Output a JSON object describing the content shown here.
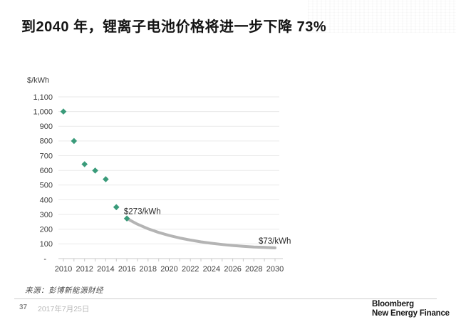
{
  "page": {
    "title": "到2040 年，锂离子电池价格将进一步下降 73%",
    "source": "来源：彭博新能源财经",
    "page_number": "37",
    "date": "2017年7月25日",
    "logo_line1": "Bloomberg",
    "logo_line2": "New Energy Finance"
  },
  "colors": {
    "observed_point": "#3a9b7a",
    "forecast_curve": "#b4b4b4",
    "gridline": "#eaeaea",
    "axis": "#c8c8c8",
    "tick_text": "#3d3d3d",
    "annotation_text": "#2a2a2a"
  },
  "chart_data": {
    "type": "scatter",
    "title": "到2040 年，锂离子电池价格将进一步下降 73%",
    "xlabel": "",
    "ylabel": "$/kWh",
    "xlim": [
      2010,
      2030
    ],
    "ylim": [
      0,
      1100
    ],
    "grid": true,
    "legend": "none",
    "y_ticks": [
      {
        "value": 1100,
        "label": "1,100"
      },
      {
        "value": 1000,
        "label": "1,000"
      },
      {
        "value": 900,
        "label": "900"
      },
      {
        "value": 800,
        "label": "800"
      },
      {
        "value": 700,
        "label": "700"
      },
      {
        "value": 600,
        "label": "600"
      },
      {
        "value": 500,
        "label": "500"
      },
      {
        "value": 400,
        "label": "400"
      },
      {
        "value": 300,
        "label": "300"
      },
      {
        "value": 200,
        "label": "200"
      },
      {
        "value": 100,
        "label": "100"
      },
      {
        "value": 0,
        "label": "-"
      }
    ],
    "x_tick_labels": [
      "2010",
      "2012",
      "2014",
      "2016",
      "2018",
      "2020",
      "2022",
      "2024",
      "2026",
      "2028",
      "2030"
    ],
    "series": [
      {
        "name": "observed-battery-prices",
        "type": "scatter",
        "color": "#3a9b7a",
        "points": [
          [
            2010,
            1000
          ],
          [
            2011,
            800
          ],
          [
            2012,
            642
          ],
          [
            2013,
            599
          ],
          [
            2014,
            540
          ],
          [
            2015,
            350
          ],
          [
            2016,
            273
          ]
        ]
      },
      {
        "name": "forecast-battery-prices",
        "type": "line",
        "color": "#b4b4b4",
        "points": [
          [
            2016,
            273
          ],
          [
            2017,
            234
          ],
          [
            2018,
            203
          ],
          [
            2019,
            178
          ],
          [
            2020,
            157
          ],
          [
            2021,
            140
          ],
          [
            2022,
            126
          ],
          [
            2023,
            114
          ],
          [
            2024,
            104
          ],
          [
            2025,
            96
          ],
          [
            2026,
            89
          ],
          [
            2027,
            84
          ],
          [
            2028,
            79
          ],
          [
            2029,
            76
          ],
          [
            2030,
            73
          ]
        ]
      }
    ],
    "annotations": [
      {
        "text": "$273/kWh",
        "year": 2015.72,
        "value": 322,
        "anchor": "start"
      },
      {
        "text": "$73/kWh",
        "year": 2028.45,
        "value": 121,
        "anchor": "start"
      }
    ]
  }
}
